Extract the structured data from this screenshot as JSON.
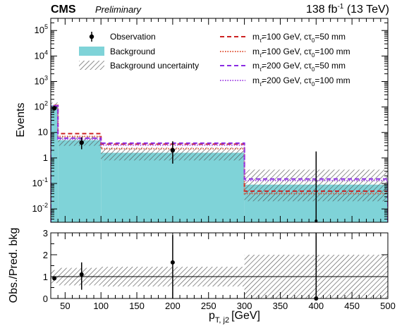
{
  "header": {
    "experiment": "CMS",
    "status": "Preliminary",
    "lumi_value": "138 fb",
    "lumi_exp": "-1",
    "lumi_energy": " (13 TeV)"
  },
  "colors": {
    "background_fill": "#7fd3d8",
    "observation": "#000000",
    "sig1": "#cc2222",
    "sig2": "#e0553a",
    "sig3": "#8a2be2",
    "sig4": "#a64de6",
    "hatch": "#555555"
  },
  "chart_data": [
    {
      "type": "bar",
      "panel": "main",
      "log_scale_y": true,
      "xlim": [
        30,
        500
      ],
      "ylim": [
        0.003,
        300000
      ],
      "ylabel": "Events",
      "bin_edges": [
        30,
        40,
        100,
        300,
        500
      ],
      "y_ticks": [
        {
          "v": 0.01,
          "m": "10",
          "e": "-2"
        },
        {
          "v": 0.1,
          "m": "10",
          "e": "-1"
        },
        {
          "v": 1,
          "m": "1",
          "e": ""
        },
        {
          "v": 10,
          "m": "10",
          "e": ""
        },
        {
          "v": 100,
          "m": "10",
          "e": "2"
        },
        {
          "v": 1000,
          "m": "10",
          "e": "3"
        },
        {
          "v": 10000,
          "m": "10",
          "e": "4"
        },
        {
          "v": 100000,
          "m": "10",
          "e": "5"
        }
      ],
      "series": [
        {
          "name": "Background",
          "kind": "fill",
          "values": [
            120,
            5,
            1.6,
            0.09
          ]
        },
        {
          "name": "Background uncertainty",
          "kind": "band",
          "low": [
            60,
            3,
            0.8,
            0.02
          ],
          "high": [
            150,
            7,
            2.6,
            0.35
          ]
        },
        {
          "name": "m_τ̃=100 GeV, cτ₀=50 mm",
          "kind": "line",
          "style": "dash",
          "values": [
            115,
            9,
            3.5,
            0.05
          ]
        },
        {
          "name": "m_τ̃=100 GeV, cτ₀=100 mm",
          "kind": "line",
          "style": "dot",
          "values": [
            110,
            7,
            2.3,
            0.04
          ]
        },
        {
          "name": "m_τ̃=200 GeV, cτ₀=50 mm",
          "kind": "line",
          "style": "dash",
          "values": [
            112,
            6,
            3.8,
            0.15
          ]
        },
        {
          "name": "m_τ̃=200 GeV, cτ₀=100 mm",
          "kind": "line",
          "style": "dot",
          "values": [
            108,
            5.5,
            3.2,
            0.13
          ]
        }
      ],
      "observation": [
        {
          "x": 35,
          "y": 90,
          "lo": 80,
          "hi": 100
        },
        {
          "x": 73,
          "y": 4,
          "lo": 2.2,
          "hi": 6.5
        },
        {
          "x": 200,
          "y": 2,
          "lo": 0.6,
          "hi": 4.5
        },
        {
          "x": 400,
          "y": 0.0025,
          "lo": 0.0025,
          "hi": 1.8
        }
      ]
    },
    {
      "type": "scatter",
      "panel": "ratio",
      "xlim": [
        30,
        500
      ],
      "ylim": [
        0,
        3
      ],
      "ylabel": "Obs./Pred. bkg",
      "xlabel": "[GeV]",
      "xlabel_var": "p",
      "xlabel_sub": "T, j2",
      "x_ticks": [
        50,
        100,
        150,
        200,
        250,
        300,
        350,
        400,
        450,
        500
      ],
      "y_ticks": [
        0,
        1,
        2,
        3
      ],
      "uncertainty_band": [
        {
          "x0": 30,
          "x1": 40,
          "lo": 0.7,
          "hi": 1.3
        },
        {
          "x0": 40,
          "x1": 100,
          "lo": 0.6,
          "hi": 1.4
        },
        {
          "x0": 100,
          "x1": 300,
          "lo": 0.55,
          "hi": 1.45
        },
        {
          "x0": 300,
          "x1": 500,
          "lo": 0.0,
          "hi": 2.0
        }
      ],
      "points": [
        {
          "x": 35,
          "y": 0.92,
          "lo": 0.82,
          "hi": 1.02
        },
        {
          "x": 73,
          "y": 1.1,
          "lo": 0.4,
          "hi": 1.65
        },
        {
          "x": 200,
          "y": 1.65,
          "lo": 0.0,
          "hi": 2.9
        },
        {
          "x": 400,
          "y": 0.0,
          "lo": 0.0,
          "hi": 3.0
        }
      ]
    }
  ],
  "legend": {
    "left": [
      "Observation",
      "Background",
      "Background uncertainty"
    ],
    "right": [
      {
        "mass": "=100 GeV, cτ",
        "ctau": "=50 mm"
      },
      {
        "mass": "=100 GeV, cτ",
        "ctau": "=100 mm"
      },
      {
        "mass": "=200 GeV, cτ",
        "ctau": "=50 mm"
      },
      {
        "mass": "=200 GeV, cτ",
        "ctau": "=100 mm"
      }
    ],
    "m_symbol": "m",
    "m_sub": "τ̃",
    "ctau_sub": "0"
  }
}
